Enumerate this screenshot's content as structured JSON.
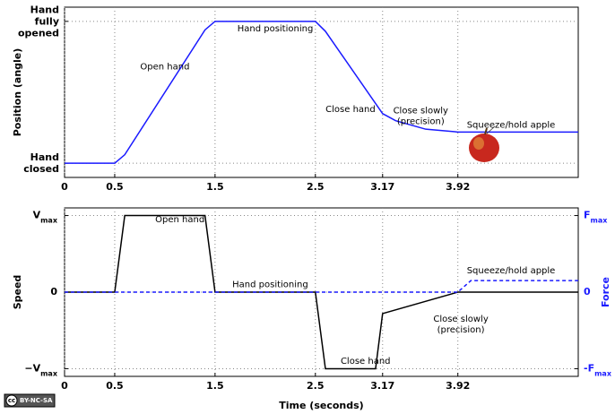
{
  "chart_data": [
    {
      "type": "line",
      "ylabel": "Position (angle)",
      "xlim": [
        0,
        5.12
      ],
      "xticks": [
        0,
        0.5,
        1.5,
        2.5,
        3.17,
        3.92
      ],
      "ylim": [
        -0.1,
        1.1
      ],
      "yticks": [
        {
          "value": 0,
          "label": "Hand closed"
        },
        {
          "value": 1,
          "label": "Hand fully opened"
        }
      ],
      "grid": true,
      "series": [
        {
          "color": "#1a1aff",
          "dash": false,
          "x": [
            0,
            0.5,
            0.6,
            1.4,
            1.5,
            2.5,
            2.6,
            3.17,
            3.3,
            3.6,
            3.92,
            5.12
          ],
          "values": [
            0,
            0,
            0.06,
            0.94,
            1,
            1,
            0.93,
            0.35,
            0.3,
            0.24,
            0.22,
            0.22
          ]
        }
      ],
      "annotations": [
        "Open hand",
        "Hand positioning",
        "Close hand",
        [
          "Close slowly",
          "(precision)"
        ],
        "Squeeze/hold apple"
      ]
    },
    {
      "type": "line",
      "ylabel": "Speed",
      "y2label": "Force",
      "xlabel": "Time (seconds)",
      "xlim": [
        0,
        5.12
      ],
      "xticks": [
        0,
        0.5,
        1.5,
        2.5,
        3.17,
        3.92
      ],
      "ylim": [
        -1.1,
        1.1
      ],
      "yticks": [
        {
          "value": -1,
          "label": "−V",
          "subscript": "max"
        },
        0,
        {
          "value": 1,
          "label": "V",
          "subscript": "max"
        }
      ],
      "y2lim": [
        -1.1,
        1.1
      ],
      "y2ticks": [
        {
          "value": -1,
          "label": "-F",
          "subscript": "max"
        },
        0,
        {
          "value": 1,
          "label": "F",
          "subscript": "max"
        }
      ],
      "grid": true,
      "series": [
        {
          "color": "#000000",
          "dash": false,
          "x": [
            0,
            0.5,
            0.6,
            1.4,
            1.5,
            2.5,
            2.6,
            3.1,
            3.17,
            3.92,
            5.12
          ],
          "values": [
            0,
            0,
            1,
            1,
            0,
            0,
            -1,
            -1,
            -0.28,
            0,
            0
          ]
        },
        {
          "color": "#1a1aff",
          "dash": true,
          "axis": "y2",
          "x": [
            0,
            3.92,
            4.05,
            5.12
          ],
          "values": [
            0,
            0,
            0.15,
            0.15
          ]
        }
      ],
      "annotations": [
        "Open hand",
        "Hand positioning",
        "Close hand",
        [
          "Close slowly",
          "(precision)"
        ],
        "Squeeze/hold apple"
      ]
    }
  ],
  "license": {
    "icon": "cc",
    "text": "BY-NC-SA"
  }
}
